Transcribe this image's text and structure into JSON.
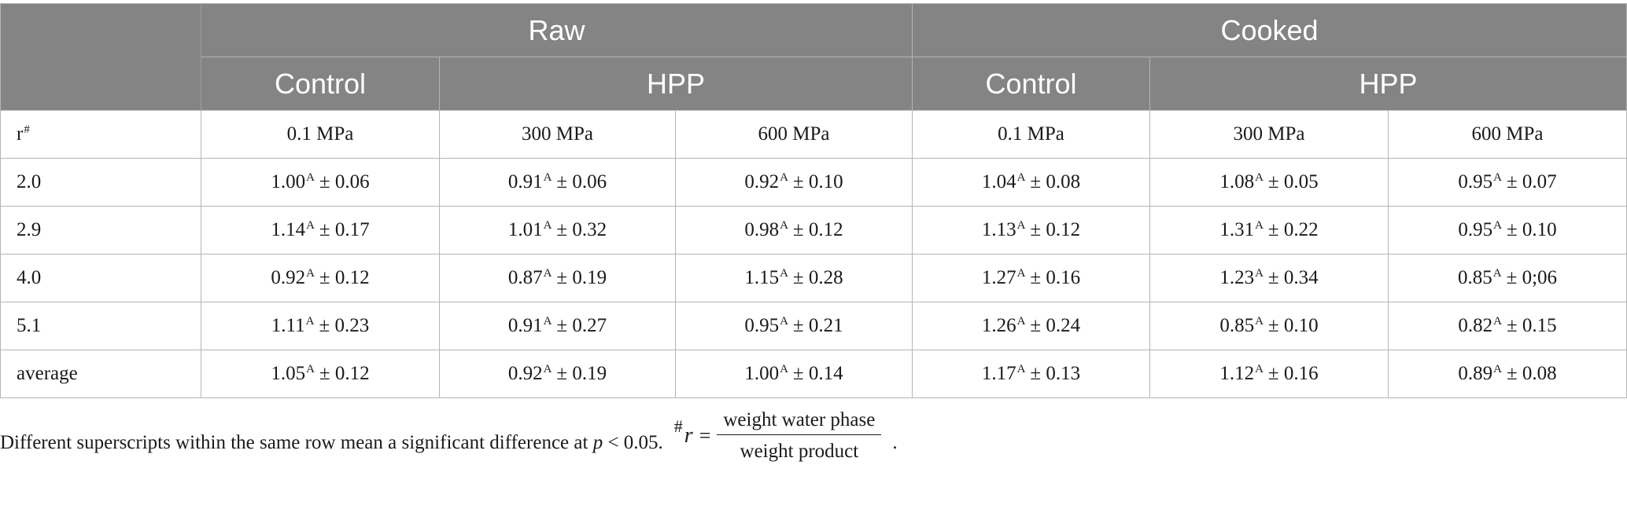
{
  "table": {
    "group_headers": [
      "Raw",
      "Cooked"
    ],
    "sub_headers": [
      "Control",
      "HPP",
      "Control",
      "HPP"
    ],
    "pressure_row": {
      "label": "r",
      "label_sup": "#",
      "values": [
        "0.1 MPa",
        "300 MPa",
        "600 MPa",
        "0.1 MPa",
        "300 MPa",
        "600 MPa"
      ]
    },
    "rows": [
      {
        "label": "2.0",
        "cells": [
          {
            "mean": "1.00",
            "sup": "A",
            "sd": "± 0.06"
          },
          {
            "mean": "0.91",
            "sup": "A",
            "sd": "± 0.06"
          },
          {
            "mean": "0.92",
            "sup": "A",
            "sd": "± 0.10"
          },
          {
            "mean": "1.04",
            "sup": "A",
            "sd": "± 0.08"
          },
          {
            "mean": "1.08",
            "sup": "A",
            "sd": "± 0.05"
          },
          {
            "mean": "0.95",
            "sup": "A",
            "sd": "± 0.07"
          }
        ]
      },
      {
        "label": "2.9",
        "cells": [
          {
            "mean": "1.14",
            "sup": "A",
            "sd": "± 0.17"
          },
          {
            "mean": "1.01",
            "sup": "A",
            "sd": "± 0.32"
          },
          {
            "mean": "0.98",
            "sup": "A",
            "sd": "± 0.12"
          },
          {
            "mean": "1.13",
            "sup": "A",
            "sd": "± 0.12"
          },
          {
            "mean": "1.31",
            "sup": "A",
            "sd": "± 0.22"
          },
          {
            "mean": "0.95",
            "sup": "A",
            "sd": "± 0.10"
          }
        ]
      },
      {
        "label": "4.0",
        "cells": [
          {
            "mean": "0.92",
            "sup": "A",
            "sd": "± 0.12"
          },
          {
            "mean": "0.87",
            "sup": "A",
            "sd": "± 0.19"
          },
          {
            "mean": "1.15",
            "sup": "A",
            "sd": "± 0.28"
          },
          {
            "mean": "1.27",
            "sup": "A",
            "sd": "± 0.16"
          },
          {
            "mean": "1.23",
            "sup": "A",
            "sd": "± 0.34"
          },
          {
            "mean": "0.85",
            "sup": "A",
            "sd": "± 0;06"
          }
        ]
      },
      {
        "label": "5.1",
        "cells": [
          {
            "mean": "1.11",
            "sup": "A",
            "sd": "± 0.23"
          },
          {
            "mean": "0.91",
            "sup": "A",
            "sd": "± 0.27"
          },
          {
            "mean": "0.95",
            "sup": "A",
            "sd": "± 0.21"
          },
          {
            "mean": "1.26",
            "sup": "A",
            "sd": "± 0.24"
          },
          {
            "mean": "0.85",
            "sup": "A",
            "sd": "± 0.10"
          },
          {
            "mean": "0.82",
            "sup": "A",
            "sd": "± 0.15"
          }
        ]
      },
      {
        "label": "average",
        "cells": [
          {
            "mean": "1.05",
            "sup": "A",
            "sd": "± 0.12"
          },
          {
            "mean": "0.92",
            "sup": "A",
            "sd": "± 0.19"
          },
          {
            "mean": "1.00",
            "sup": "A",
            "sd": "± 0.14"
          },
          {
            "mean": "1.17",
            "sup": "A",
            "sd": "± 0.13"
          },
          {
            "mean": "1.12",
            "sup": "A",
            "sd": "± 0.16"
          },
          {
            "mean": "0.89",
            "sup": "A",
            "sd": "± 0.08"
          }
        ]
      }
    ]
  },
  "footnote": {
    "text_before": "Different superscripts within the same row mean a significant difference at ",
    "p_symbol": "p",
    "text_after": " < 0.05.",
    "formula": {
      "hash": "#",
      "variable": "r",
      "equals": "=",
      "numerator": "weight water phase",
      "denominator": "weight product",
      "period": "."
    }
  },
  "colors": {
    "header_bg": "#838483",
    "header_text": "#ffffff",
    "grid": "#b5b5b5"
  }
}
